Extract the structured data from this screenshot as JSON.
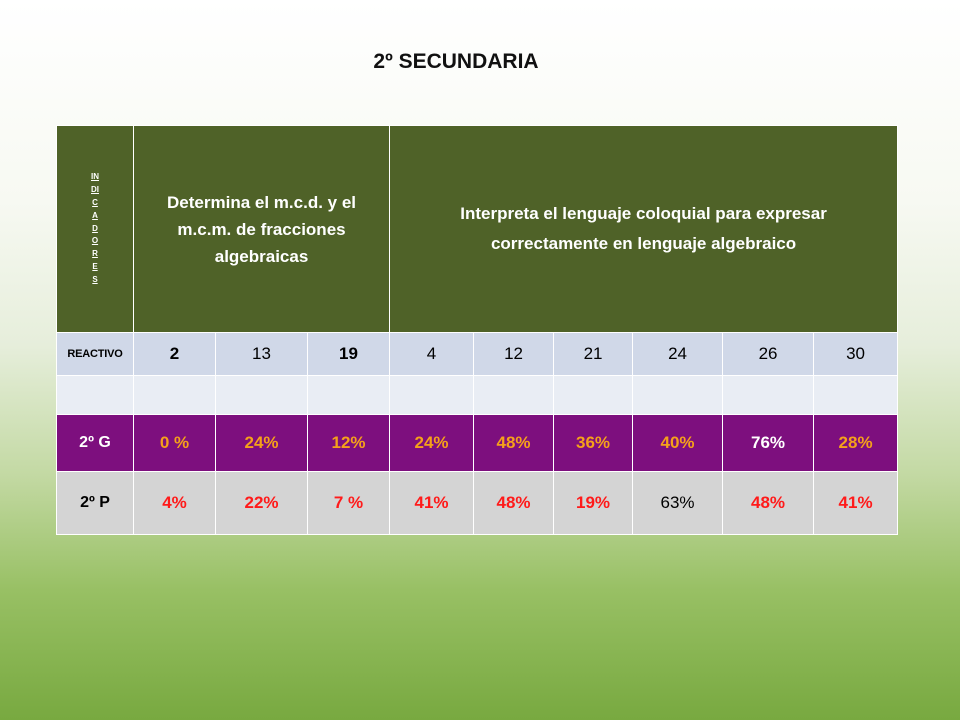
{
  "title": "2º SECUNDARIA",
  "indicadores_label": "INDICADORES",
  "indicators": [
    "Determina el m.c.d. y el m.c.m. de fracciones algebraicas",
    "Interpreta el lenguaje coloquial para expresar correctamente en lenguaje algebraico"
  ],
  "reactivo": {
    "label": "REACTIVO",
    "items": [
      "2",
      "13",
      "19",
      "4",
      "12",
      "21",
      "24",
      "26",
      "30"
    ]
  },
  "groups": [
    {
      "label": "2º G",
      "values": [
        "0 %",
        "24%",
        "12%",
        "24%",
        "48%",
        "36%",
        "40%",
        "76%",
        "28%"
      ]
    },
    {
      "label": "2º P",
      "values": [
        "4%",
        "22%",
        "7 %",
        "41%",
        "48%",
        "19%",
        "63%",
        "48%",
        "41%"
      ]
    }
  ],
  "colors": {
    "header_bg": "#4f6228",
    "reactivo_bg": "#d0d8e8",
    "group_g_bg": "#7d0f7e",
    "group_g_text": "#f5a11a",
    "group_p_bg": "#d4d4d4",
    "group_p_text": "#ff1a1a"
  }
}
